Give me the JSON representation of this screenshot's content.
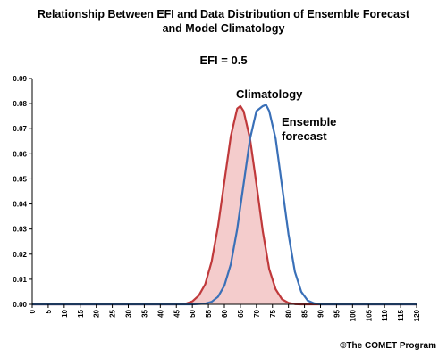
{
  "header": {
    "title_line1": "Relationship Between EFI and Data Distribution of Ensemble Forecast",
    "title_line2": "and Model Climatology",
    "subtitle": "EFI = 0.5"
  },
  "footer": {
    "credit": "©The COMET Program"
  },
  "chart_data": {
    "type": "line",
    "title": "Relationship Between EFI and Data Distribution of Ensemble Forecast and Model Climatology",
    "subtitle": "EFI = 0.5",
    "xlabel": "",
    "ylabel": "",
    "xlim": [
      0,
      120
    ],
    "ylim": [
      0,
      0.09
    ],
    "x_ticks": [
      0,
      5,
      10,
      15,
      20,
      25,
      30,
      35,
      40,
      45,
      50,
      55,
      60,
      65,
      70,
      75,
      80,
      85,
      90,
      95,
      100,
      105,
      110,
      115,
      120
    ],
    "y_ticks": [
      "0.00",
      "0.01",
      "0.02",
      "0.03",
      "0.04",
      "0.05",
      "0.06",
      "0.07",
      "0.08",
      "0.09"
    ],
    "grid": false,
    "series": [
      {
        "name": "Climatology",
        "color": "#c0393b",
        "fill": "#f4cccc",
        "x": [
          0,
          5,
          10,
          15,
          20,
          25,
          30,
          35,
          40,
          45,
          48,
          50,
          52,
          54,
          56,
          58,
          60,
          62,
          64,
          65,
          66,
          68,
          70,
          72,
          74,
          76,
          78,
          80,
          82,
          84,
          86,
          88,
          90,
          95,
          100,
          105,
          110,
          115,
          120
        ],
        "y": [
          0,
          0,
          0,
          0,
          0,
          0,
          0,
          0,
          0,
          0,
          0.0003,
          0.0012,
          0.0035,
          0.008,
          0.017,
          0.031,
          0.049,
          0.067,
          0.078,
          0.079,
          0.077,
          0.066,
          0.048,
          0.029,
          0.014,
          0.006,
          0.002,
          0.0006,
          0.0001,
          0,
          0,
          0,
          0,
          0,
          0,
          0,
          0,
          0,
          0
        ]
      },
      {
        "name": "Ensemble forecast",
        "color": "#3a70b8",
        "x": [
          0,
          5,
          10,
          15,
          20,
          25,
          30,
          35,
          40,
          45,
          50,
          54,
          56,
          58,
          60,
          62,
          64,
          66,
          68,
          70,
          72,
          73,
          74,
          76,
          78,
          80,
          82,
          84,
          86,
          88,
          90,
          95,
          100,
          105,
          110,
          115,
          120
        ],
        "y": [
          0,
          0,
          0,
          0,
          0,
          0,
          0,
          0,
          0,
          0,
          0,
          0.0003,
          0.001,
          0.003,
          0.0075,
          0.016,
          0.03,
          0.048,
          0.066,
          0.077,
          0.079,
          0.0795,
          0.077,
          0.066,
          0.047,
          0.028,
          0.013,
          0.005,
          0.0015,
          0.0004,
          0,
          0,
          0,
          0,
          0,
          0,
          0
        ]
      }
    ],
    "annotations": [
      {
        "text": "Climatology"
      },
      {
        "text_line1": "Ensemble",
        "text_line2": "forecast"
      }
    ]
  }
}
